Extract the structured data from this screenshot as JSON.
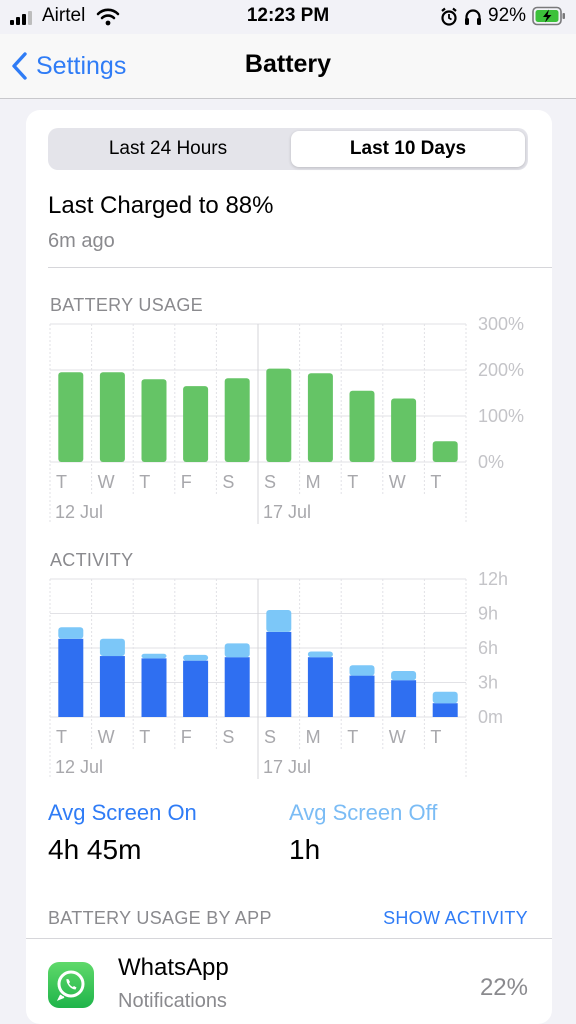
{
  "status_bar": {
    "carrier": "Airtel",
    "time": "12:23 PM",
    "battery": "92%"
  },
  "nav": {
    "back_label": "Settings",
    "title": "Battery"
  },
  "segmented": {
    "options": [
      "Last 24 Hours",
      "Last 10 Days"
    ],
    "selected": "Last 10 Days"
  },
  "last_charged": {
    "title": "Last Charged to 88%",
    "ago": "6m ago"
  },
  "battery_usage": {
    "section_title": "BATTERY USAGE",
    "chart_data": {
      "type": "bar",
      "categories": [
        "T",
        "W",
        "T",
        "F",
        "S",
        "S",
        "M",
        "T",
        "W",
        "T"
      ],
      "values": [
        195,
        195,
        180,
        165,
        182,
        203,
        193,
        155,
        138,
        45
      ],
      "ylim": [
        0,
        300
      ],
      "yticks": [
        "300%",
        "200%",
        "100%",
        "0%"
      ],
      "date_labels": [
        "12 Jul",
        "17 Jul"
      ],
      "color": "#65c466"
    }
  },
  "activity": {
    "section_title": "ACTIVITY",
    "chart_data": {
      "type": "bar",
      "categories": [
        "T",
        "W",
        "T",
        "F",
        "S",
        "S",
        "M",
        "T",
        "W",
        "T"
      ],
      "series": [
        {
          "name": "Avg Screen On",
          "values": [
            6.8,
            5.3,
            5.1,
            4.9,
            5.2,
            7.4,
            5.2,
            3.6,
            3.2,
            1.2
          ],
          "color": "#2f6ff1"
        },
        {
          "name": "Avg Screen Off",
          "values": [
            1.0,
            1.5,
            0.4,
            0.5,
            1.2,
            1.9,
            0.5,
            0.9,
            0.8,
            1.0
          ],
          "color": "#7cc7f8"
        }
      ],
      "ylim": [
        0,
        12
      ],
      "yticks": [
        "12h",
        "9h",
        "6h",
        "3h",
        "0m"
      ],
      "date_labels": [
        "12 Jul",
        "17 Jul"
      ]
    }
  },
  "averages": {
    "screen_on_label": "Avg Screen On",
    "screen_on_value": "4h 45m",
    "screen_off_label": "Avg Screen Off",
    "screen_off_value": "1h"
  },
  "usage_by_app": {
    "section_title": "BATTERY USAGE BY APP",
    "action": "SHOW ACTIVITY",
    "apps": [
      {
        "name": "WhatsApp",
        "subtitle": "Notifications",
        "percent": "22%",
        "icon": "whatsapp-icon"
      }
    ]
  }
}
